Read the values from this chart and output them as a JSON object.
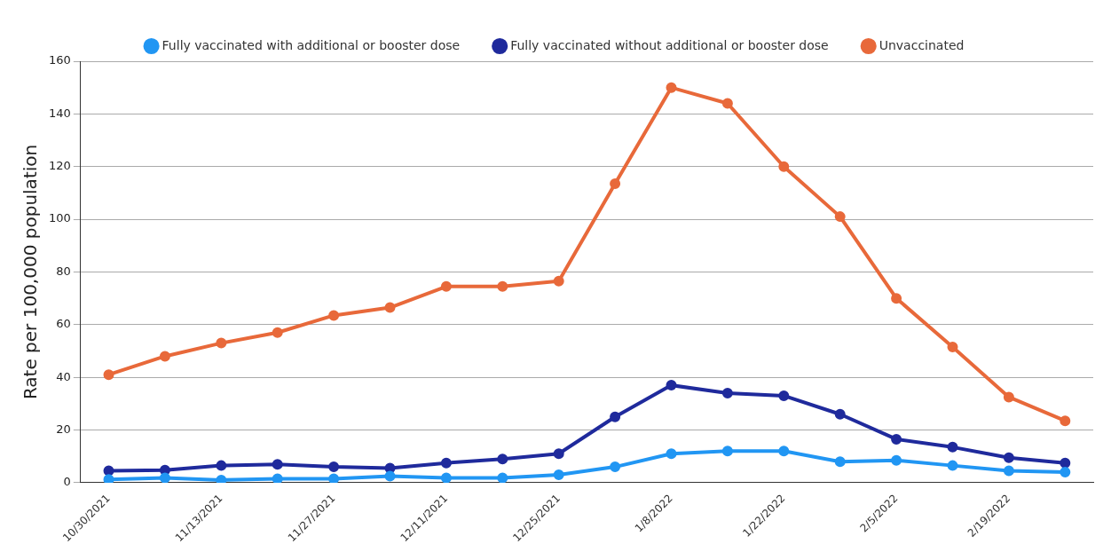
{
  "chart_data": {
    "type": "line",
    "ylabel": "Rate per 100,000 population",
    "categories": [
      "10/30/2021",
      null,
      "11/13/2021",
      null,
      "11/27/2021",
      null,
      "12/11/2021",
      null,
      "12/25/2021",
      null,
      "1/8/2022",
      null,
      "1/22/2022",
      null,
      "2/5/2022",
      null,
      "2/19/2022",
      null
    ],
    "series": [
      {
        "name": "Fully vaccinated with additional or booster dose",
        "color": "#2196f3",
        "values": [
          1.2,
          1.8,
          1,
          1.5,
          1.5,
          2.5,
          1.8,
          1.8,
          3,
          6,
          11,
          12,
          12,
          8,
          8.5,
          6.5,
          4.5,
          4
        ]
      },
      {
        "name": "Fully vaccinated without additional or booster dose",
        "color": "#1f2a9c",
        "values": [
          4.5,
          4.8,
          6.5,
          7,
          6,
          5.5,
          7.5,
          9,
          11,
          25,
          37,
          34,
          33,
          26,
          16.5,
          13.5,
          9.5,
          7.5
        ]
      },
      {
        "name": "Unvaccinated",
        "color": "#e8693a",
        "values": [
          41,
          48,
          53,
          57,
          63.5,
          66.5,
          74.5,
          74.5,
          76.5,
          113.5,
          150,
          144,
          120,
          101,
          70,
          51.5,
          32.5,
          23.5
        ]
      }
    ],
    "ylim": [
      0,
      160
    ],
    "yticks": [
      0,
      20,
      40,
      60,
      80,
      100,
      120,
      140,
      160
    ],
    "grid": "y",
    "legend": "top",
    "marker": "circle",
    "line_style": "solid"
  }
}
